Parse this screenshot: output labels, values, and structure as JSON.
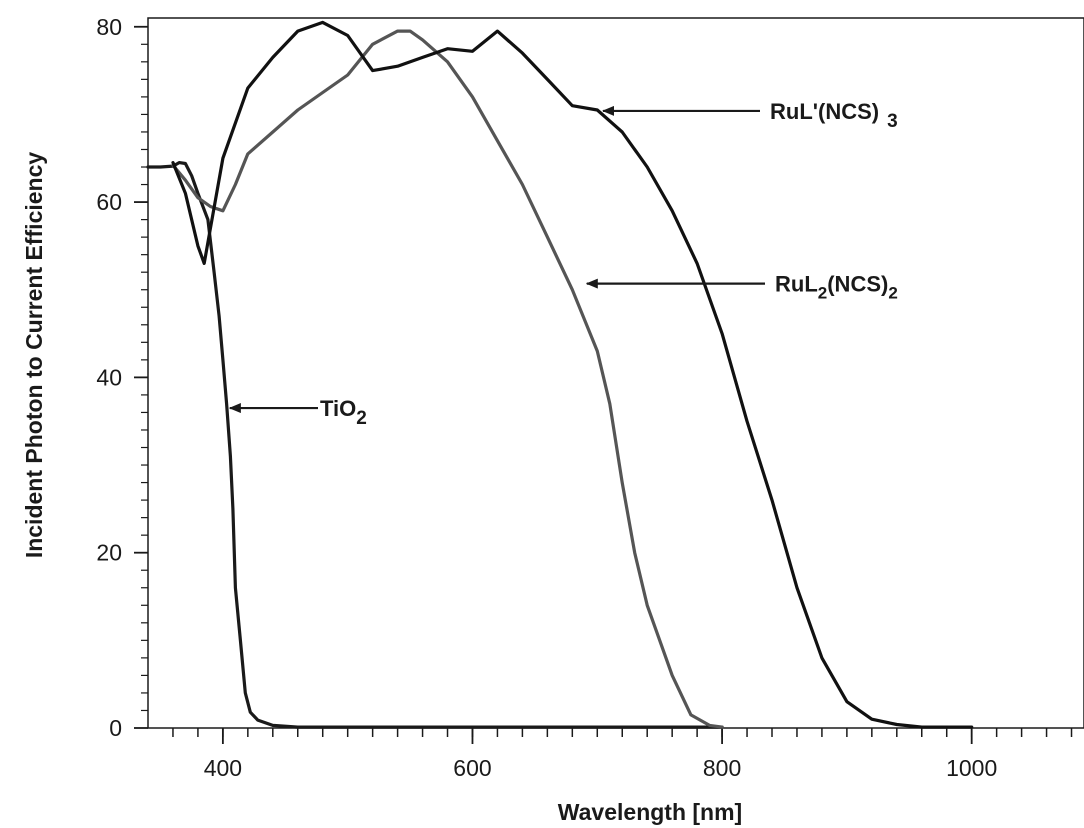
{
  "chart_data": {
    "type": "line",
    "xlabel": "Wavelength [nm]",
    "ylabel": "Incident Photon to Current Efficiency",
    "xlim": [
      340,
      1090
    ],
    "ylim": [
      0,
      81
    ],
    "xticks": [
      400,
      600,
      800,
      1000
    ],
    "yticks": [
      0,
      20,
      40,
      60,
      80
    ],
    "grid": false,
    "legend": "none",
    "series": [
      {
        "name": "TiO2",
        "color": "#1a1a1a",
        "points": [
          [
            340,
            64
          ],
          [
            350,
            64
          ],
          [
            360,
            64.1
          ],
          [
            365,
            64.5
          ],
          [
            370,
            64.4
          ],
          [
            375,
            63
          ],
          [
            380,
            61
          ],
          [
            388,
            58
          ],
          [
            393,
            52
          ],
          [
            397,
            47
          ],
          [
            400,
            42
          ],
          [
            403,
            37
          ],
          [
            406,
            31
          ],
          [
            408,
            25
          ],
          [
            410,
            16
          ],
          [
            414,
            10
          ],
          [
            418,
            4
          ],
          [
            422,
            1.8
          ],
          [
            428,
            0.9
          ],
          [
            440,
            0.3
          ],
          [
            460,
            0.1
          ],
          [
            520,
            0.1
          ],
          [
            600,
            0.1
          ],
          [
            700,
            0.1
          ],
          [
            800,
            0.1
          ]
        ]
      },
      {
        "name": "RuL2(NCS)2",
        "color": "#555555",
        "points": [
          [
            360,
            64.2
          ],
          [
            370,
            62.5
          ],
          [
            380,
            60.5
          ],
          [
            390,
            59.5
          ],
          [
            400,
            59
          ],
          [
            410,
            62
          ],
          [
            420,
            65.5
          ],
          [
            440,
            68
          ],
          [
            460,
            70.5
          ],
          [
            480,
            72.5
          ],
          [
            500,
            74.5
          ],
          [
            520,
            78
          ],
          [
            540,
            79.5
          ],
          [
            550,
            79.5
          ],
          [
            560,
            78.5
          ],
          [
            580,
            76
          ],
          [
            600,
            72
          ],
          [
            620,
            67
          ],
          [
            640,
            62
          ],
          [
            660,
            56
          ],
          [
            680,
            50
          ],
          [
            700,
            43
          ],
          [
            710,
            37
          ],
          [
            720,
            28
          ],
          [
            730,
            20
          ],
          [
            740,
            14
          ],
          [
            760,
            6
          ],
          [
            775,
            1.5
          ],
          [
            790,
            0.3
          ],
          [
            800,
            0.1
          ]
        ]
      },
      {
        "name": "RuL'(NCS)3",
        "color": "#111111",
        "points": [
          [
            360,
            64.5
          ],
          [
            370,
            61
          ],
          [
            380,
            55
          ],
          [
            385,
            53
          ],
          [
            390,
            57
          ],
          [
            400,
            65
          ],
          [
            420,
            73
          ],
          [
            440,
            76.5
          ],
          [
            460,
            79.5
          ],
          [
            480,
            80.5
          ],
          [
            500,
            79
          ],
          [
            520,
            75
          ],
          [
            540,
            75.5
          ],
          [
            560,
            76.5
          ],
          [
            580,
            77.5
          ],
          [
            600,
            77.2
          ],
          [
            620,
            79.5
          ],
          [
            640,
            77
          ],
          [
            660,
            74
          ],
          [
            680,
            71
          ],
          [
            700,
            70.5
          ],
          [
            720,
            68
          ],
          [
            740,
            64
          ],
          [
            760,
            59
          ],
          [
            780,
            53
          ],
          [
            800,
            45
          ],
          [
            820,
            35
          ],
          [
            840,
            26
          ],
          [
            860,
            16
          ],
          [
            880,
            8
          ],
          [
            900,
            3
          ],
          [
            920,
            1
          ],
          [
            940,
            0.4
          ],
          [
            960,
            0.1
          ],
          [
            1000,
            0.1
          ]
        ]
      }
    ],
    "annotations": [
      {
        "series": "RuL'(NCS)3",
        "label": "RuL'(NCS)",
        "sub": "3",
        "point": [
          703,
          70.4
        ]
      },
      {
        "series": "RuL2(NCS)2",
        "label": "RuL",
        "sub1": "2",
        "mid": "(NCS)",
        "sub2": "2",
        "point": [
          690,
          50.7
        ]
      },
      {
        "series": "TiO2",
        "label": "TiO",
        "sub": "2",
        "point": [
          404,
          36.5
        ]
      }
    ]
  }
}
